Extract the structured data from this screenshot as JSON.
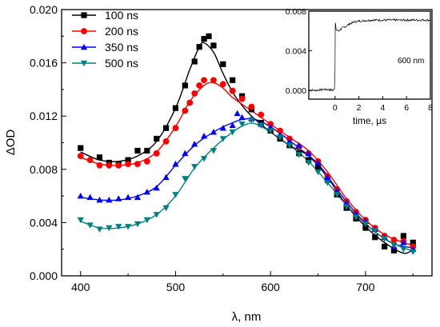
{
  "chart_data": [
    {
      "type": "line",
      "xlabel": "λ, nm",
      "ylabel": "ΔOD",
      "xlim": [
        380,
        770
      ],
      "ylim": [
        0,
        0.02
      ],
      "xticks": [
        400,
        500,
        600,
        700
      ],
      "xtick_labels": [
        "400",
        "500",
        "600",
        "700"
      ],
      "yticks": [
        0,
        0.004,
        0.008,
        0.012,
        0.016,
        0.02
      ],
      "ytick_labels": [
        "0.000",
        "0.004",
        "0.008",
        "0.012",
        "0.016",
        "0.020"
      ],
      "legend_position": "top-left",
      "grid": false,
      "series": [
        {
          "name": "100 ns",
          "color": "#000000",
          "marker": "square",
          "points": [
            [
              400,
              0.0096
            ],
            [
              420,
              0.0089
            ],
            [
              430,
              0.0085
            ],
            [
              440,
              0.0084
            ],
            [
              450,
              0.0087
            ],
            [
              460,
              0.0094
            ],
            [
              470,
              0.0094
            ],
            [
              480,
              0.0103
            ],
            [
              490,
              0.0111
            ],
            [
              500,
              0.0126
            ],
            [
              510,
              0.0143
            ],
            [
              520,
              0.0161
            ],
            [
              525,
              0.0172
            ],
            [
              530,
              0.0178
            ],
            [
              535,
              0.018
            ],
            [
              540,
              0.0173
            ],
            [
              550,
              0.0159
            ],
            [
              560,
              0.0147
            ],
            [
              570,
              0.0135
            ],
            [
              580,
              0.0125
            ],
            [
              590,
              0.0115
            ],
            [
              600,
              0.0109
            ],
            [
              610,
              0.0103
            ],
            [
              620,
              0.0098
            ],
            [
              630,
              0.0092
            ],
            [
              640,
              0.0087
            ],
            [
              650,
              0.0082
            ],
            [
              660,
              0.0072
            ],
            [
              670,
              0.0061
            ],
            [
              680,
              0.0051
            ],
            [
              690,
              0.0043
            ],
            [
              700,
              0.0036
            ],
            [
              710,
              0.0029
            ],
            [
              720,
              0.0022
            ],
            [
              730,
              0.0019
            ],
            [
              740,
              0.003
            ],
            [
              750,
              0.0025
            ]
          ],
          "curve": [
            [
              400,
              0.0093
            ],
            [
              420,
              0.0087
            ],
            [
              440,
              0.0086
            ],
            [
              460,
              0.009
            ],
            [
              480,
              0.0101
            ],
            [
              500,
              0.0126
            ],
            [
              515,
              0.0155
            ],
            [
              525,
              0.0172
            ],
            [
              530,
              0.0175
            ],
            [
              540,
              0.0168
            ],
            [
              550,
              0.0152
            ],
            [
              560,
              0.0138
            ],
            [
              570,
              0.0128
            ],
            [
              580,
              0.012
            ],
            [
              600,
              0.0108
            ],
            [
              620,
              0.0098
            ],
            [
              640,
              0.009
            ],
            [
              660,
              0.0074
            ],
            [
              680,
              0.0053
            ],
            [
              700,
              0.0037
            ],
            [
              720,
              0.0025
            ],
            [
              740,
              0.0017
            ],
            [
              750,
              0.002
            ]
          ]
        },
        {
          "name": "200 ns",
          "color": "#ff0000",
          "marker": "circle",
          "points": [
            [
              400,
              0.009
            ],
            [
              410,
              0.0087
            ],
            [
              420,
              0.0083
            ],
            [
              430,
              0.0083
            ],
            [
              440,
              0.0083
            ],
            [
              450,
              0.0084
            ],
            [
              460,
              0.0084
            ],
            [
              470,
              0.0086
            ],
            [
              480,
              0.0092
            ],
            [
              490,
              0.0101
            ],
            [
              500,
              0.0111
            ],
            [
              510,
              0.0124
            ],
            [
              515,
              0.013
            ],
            [
              520,
              0.0137
            ],
            [
              525,
              0.0143
            ],
            [
              530,
              0.0147
            ],
            [
              540,
              0.0147
            ],
            [
              550,
              0.0144
            ],
            [
              560,
              0.0139
            ],
            [
              570,
              0.0133
            ],
            [
              580,
              0.0127
            ],
            [
              590,
              0.0121
            ],
            [
              600,
              0.0114
            ],
            [
              610,
              0.0109
            ],
            [
              620,
              0.0103
            ],
            [
              630,
              0.0097
            ],
            [
              640,
              0.0092
            ],
            [
              650,
              0.0086
            ],
            [
              660,
              0.0075
            ],
            [
              670,
              0.0065
            ],
            [
              680,
              0.0056
            ],
            [
              690,
              0.0048
            ],
            [
              700,
              0.0042
            ],
            [
              710,
              0.0036
            ],
            [
              720,
              0.003
            ],
            [
              730,
              0.0027
            ],
            [
              740,
              0.0026
            ],
            [
              750,
              0.0022
            ]
          ],
          "curve": [
            [
              400,
              0.0089
            ],
            [
              420,
              0.0084
            ],
            [
              440,
              0.0083
            ],
            [
              460,
              0.0085
            ],
            [
              480,
              0.0093
            ],
            [
              500,
              0.0112
            ],
            [
              515,
              0.0131
            ],
            [
              530,
              0.0143
            ],
            [
              540,
              0.0145
            ],
            [
              550,
              0.0141
            ],
            [
              560,
              0.0134
            ],
            [
              580,
              0.0124
            ],
            [
              600,
              0.0114
            ],
            [
              620,
              0.0104
            ],
            [
              640,
              0.0094
            ],
            [
              660,
              0.0078
            ],
            [
              680,
              0.0058
            ],
            [
              700,
              0.0042
            ],
            [
              720,
              0.0031
            ],
            [
              740,
              0.0025
            ],
            [
              750,
              0.0023
            ]
          ]
        },
        {
          "name": "350 ns",
          "color": "#0000ff",
          "marker": "triangle-up",
          "points": [
            [
              400,
              0.006
            ],
            [
              410,
              0.0059
            ],
            [
              420,
              0.0057
            ],
            [
              430,
              0.0057
            ],
            [
              440,
              0.0058
            ],
            [
              450,
              0.0059
            ],
            [
              460,
              0.0059
            ],
            [
              470,
              0.0063
            ],
            [
              480,
              0.0066
            ],
            [
              490,
              0.0074
            ],
            [
              500,
              0.0084
            ],
            [
              510,
              0.0092
            ],
            [
              520,
              0.0099
            ],
            [
              530,
              0.0105
            ],
            [
              540,
              0.0108
            ],
            [
              550,
              0.0111
            ],
            [
              560,
              0.0113
            ],
            [
              565,
              0.0122
            ],
            [
              570,
              0.0119
            ],
            [
              580,
              0.0118
            ],
            [
              590,
              0.0114
            ],
            [
              600,
              0.0112
            ],
            [
              610,
              0.0106
            ],
            [
              620,
              0.0101
            ],
            [
              630,
              0.0098
            ],
            [
              640,
              0.0092
            ],
            [
              650,
              0.0085
            ],
            [
              660,
              0.0074
            ],
            [
              670,
              0.0064
            ],
            [
              680,
              0.0055
            ],
            [
              690,
              0.0047
            ],
            [
              700,
              0.0041
            ],
            [
              710,
              0.0035
            ],
            [
              720,
              0.0029
            ],
            [
              730,
              0.0022
            ],
            [
              740,
              0.0025
            ],
            [
              750,
              0.002
            ]
          ],
          "curve": [
            [
              400,
              0.0059
            ],
            [
              420,
              0.0057
            ],
            [
              440,
              0.0057
            ],
            [
              460,
              0.006
            ],
            [
              480,
              0.0067
            ],
            [
              500,
              0.0083
            ],
            [
              520,
              0.0098
            ],
            [
              540,
              0.0108
            ],
            [
              560,
              0.0115
            ],
            [
              575,
              0.0118
            ],
            [
              590,
              0.0116
            ],
            [
              610,
              0.0107
            ],
            [
              630,
              0.0096
            ],
            [
              650,
              0.0084
            ],
            [
              670,
              0.0065
            ],
            [
              690,
              0.0047
            ],
            [
              710,
              0.0033
            ],
            [
              730,
              0.0024
            ],
            [
              750,
              0.0021
            ]
          ]
        },
        {
          "name": "500 ns",
          "color": "#008080",
          "marker": "triangle-down",
          "points": [
            [
              400,
              0.0042
            ],
            [
              410,
              0.0038
            ],
            [
              420,
              0.0035
            ],
            [
              430,
              0.0036
            ],
            [
              440,
              0.0037
            ],
            [
              450,
              0.0037
            ],
            [
              460,
              0.0039
            ],
            [
              470,
              0.0042
            ],
            [
              480,
              0.0046
            ],
            [
              490,
              0.0051
            ],
            [
              500,
              0.0061
            ],
            [
              510,
              0.0073
            ],
            [
              520,
              0.0082
            ],
            [
              530,
              0.0088
            ],
            [
              540,
              0.0094
            ],
            [
              550,
              0.0103
            ],
            [
              560,
              0.0108
            ],
            [
              570,
              0.0114
            ],
            [
              580,
              0.0117
            ],
            [
              590,
              0.0113
            ],
            [
              600,
              0.0109
            ],
            [
              610,
              0.0104
            ],
            [
              620,
              0.0098
            ],
            [
              630,
              0.0091
            ],
            [
              640,
              0.0085
            ],
            [
              650,
              0.0078
            ],
            [
              660,
              0.007
            ],
            [
              670,
              0.0061
            ],
            [
              680,
              0.0052
            ],
            [
              690,
              0.0044
            ],
            [
              700,
              0.0039
            ],
            [
              710,
              0.0034
            ],
            [
              720,
              0.0028
            ],
            [
              730,
              0.0023
            ],
            [
              740,
              0.002
            ],
            [
              750,
              0.0018
            ]
          ],
          "curve": [
            [
              400,
              0.0041
            ],
            [
              420,
              0.0036
            ],
            [
              440,
              0.0036
            ],
            [
              460,
              0.0039
            ],
            [
              480,
              0.0046
            ],
            [
              500,
              0.006
            ],
            [
              520,
              0.0081
            ],
            [
              540,
              0.0096
            ],
            [
              560,
              0.0108
            ],
            [
              575,
              0.0114
            ],
            [
              585,
              0.0114
            ],
            [
              600,
              0.0108
            ],
            [
              620,
              0.0098
            ],
            [
              640,
              0.0086
            ],
            [
              660,
              0.007
            ],
            [
              680,
              0.0053
            ],
            [
              700,
              0.0039
            ],
            [
              720,
              0.0028
            ],
            [
              740,
              0.0021
            ],
            [
              750,
              0.0019
            ]
          ]
        }
      ]
    },
    {
      "type": "line",
      "xlabel": "time, µs",
      "ylabel": "",
      "xlim": [
        -2.2,
        8
      ],
      "ylim": [
        -0.0009,
        0.008
      ],
      "xticks": [
        0,
        2,
        4,
        6,
        8
      ],
      "xtick_labels": [
        "0",
        "2",
        "4",
        "6",
        "8"
      ],
      "yticks": [
        0,
        0.004,
        0.008
      ],
      "ytick_labels": [
        "0.000",
        "0.004",
        "0.008"
      ],
      "annotation": "600 nm",
      "series": [
        {
          "color": "#000000",
          "points": [
            [
              -2.2,
              0.0
            ],
            [
              -1.5,
              0.0
            ],
            [
              -0.8,
              0.0001
            ],
            [
              -0.15,
              0.0
            ],
            [
              -0.05,
              0.0002
            ],
            [
              0.0,
              0.002
            ],
            [
              0.02,
              0.0068
            ],
            [
              0.1,
              0.0061
            ],
            [
              0.3,
              0.006
            ],
            [
              0.5,
              0.0062
            ],
            [
              0.8,
              0.0064
            ],
            [
              1.2,
              0.0067
            ],
            [
              1.6,
              0.0069
            ],
            [
              2.0,
              0.007
            ],
            [
              3.0,
              0.0071
            ],
            [
              4.0,
              0.0071
            ],
            [
              5.0,
              0.0071
            ],
            [
              6.0,
              0.0071
            ],
            [
              7.0,
              0.0071
            ],
            [
              8.0,
              0.0071
            ]
          ]
        }
      ]
    }
  ]
}
